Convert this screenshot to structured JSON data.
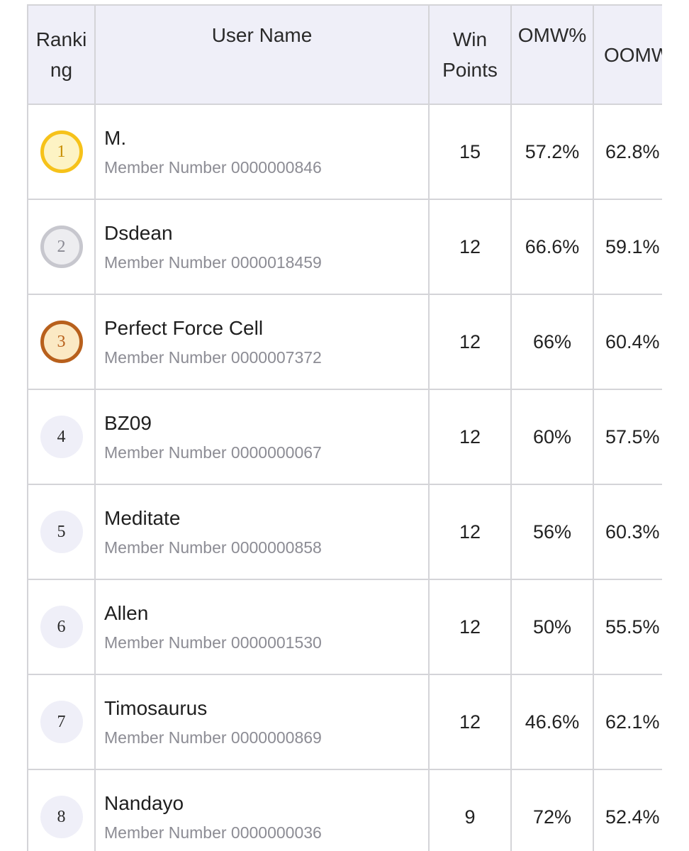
{
  "headers": {
    "ranking": "Ranking",
    "user_name": "User Name",
    "win_points": "Win Points",
    "omw": "OMW%",
    "oomw": "OOMW%"
  },
  "member_prefix": "Member Number",
  "medal_colors": {
    "gold": "#f6c21a",
    "silver": "#c7c7ce",
    "bronze": "#b8601c"
  },
  "rows": [
    {
      "rank": "1",
      "medal": "gold",
      "name": "M.",
      "member": "Member Number 0000000846",
      "win_points": "15",
      "omw": "57.2%",
      "oomw": "62.8%"
    },
    {
      "rank": "2",
      "medal": "silver",
      "name": "Dsdean",
      "member": "Member Number 0000018459",
      "win_points": "12",
      "omw": "66.6%",
      "oomw": "59.1%"
    },
    {
      "rank": "3",
      "medal": "bronze",
      "name": "Perfect Force Cell",
      "member": "Member Number 0000007372",
      "win_points": "12",
      "omw": "66%",
      "oomw": "60.4%"
    },
    {
      "rank": "4",
      "medal": "plain",
      "name": "BZ09",
      "member": "Member Number 0000000067",
      "win_points": "12",
      "omw": "60%",
      "oomw": "57.5%"
    },
    {
      "rank": "5",
      "medal": "plain",
      "name": "Meditate",
      "member": "Member Number 0000000858",
      "win_points": "12",
      "omw": "56%",
      "oomw": "60.3%"
    },
    {
      "rank": "6",
      "medal": "plain",
      "name": "Allen",
      "member": "Member Number 0000001530",
      "win_points": "12",
      "omw": "50%",
      "oomw": "55.5%"
    },
    {
      "rank": "7",
      "medal": "plain",
      "name": "Timosaurus",
      "member": "Member Number 0000000869",
      "win_points": "12",
      "omw": "46.6%",
      "oomw": "62.1%"
    },
    {
      "rank": "8",
      "medal": "plain",
      "name": "Nandayo",
      "member": "Member Number 0000000036",
      "win_points": "9",
      "omw": "72%",
      "oomw": "52.4%"
    }
  ]
}
